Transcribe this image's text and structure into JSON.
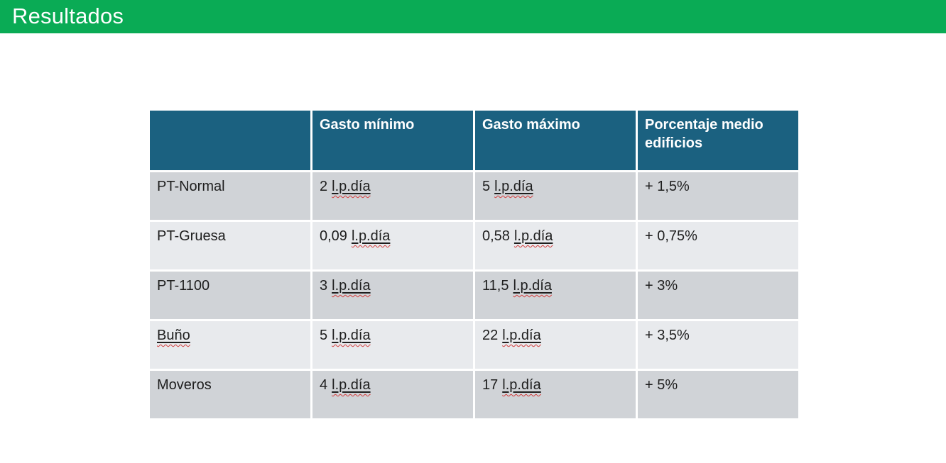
{
  "slide": {
    "title": "Resultados"
  },
  "colors": {
    "title_bar_green": "#0AAB55",
    "table_header_teal": "#1B6180",
    "row_dark_gray": "#D0D3D7",
    "row_light_gray": "#E8EAED",
    "spellcheck_red": "#D43C3C",
    "header_text": "#FFFFFF",
    "body_text": "#1E1E1E"
  },
  "table": {
    "headers": [
      "",
      "Gasto mínimo",
      "Gasto máximo",
      "Porcentaje medio edificios"
    ],
    "rows": [
      {
        "name": "PT-Normal",
        "name_misspelled": false,
        "min_value": "2",
        "min_unit": "l.p.día",
        "max_value": "5",
        "max_unit": "l.p.día",
        "pct_medio": "+ 1,5%"
      },
      {
        "name": "PT-Gruesa",
        "name_misspelled": false,
        "min_value": "0,09",
        "min_unit": "l.p.día",
        "max_value": "0,58",
        "max_unit": "l.p.día",
        "pct_medio": "+ 0,75%"
      },
      {
        "name": "PT-1100",
        "name_misspelled": false,
        "min_value": "3",
        "min_unit": "l.p.día",
        "max_value": "11,5",
        "max_unit": "l.p.día",
        "pct_medio": "+ 3%"
      },
      {
        "name": "Buño",
        "name_misspelled": true,
        "min_value": "5",
        "min_unit": "l.p.día",
        "max_value": "22",
        "max_unit": "l.p.día",
        "pct_medio": "+ 3,5%"
      },
      {
        "name": "Moveros",
        "name_misspelled": false,
        "min_value": "4",
        "min_unit": "l.p.día",
        "max_value": "17",
        "max_unit": "l.p.día",
        "pct_medio": "+ 5%"
      }
    ]
  }
}
